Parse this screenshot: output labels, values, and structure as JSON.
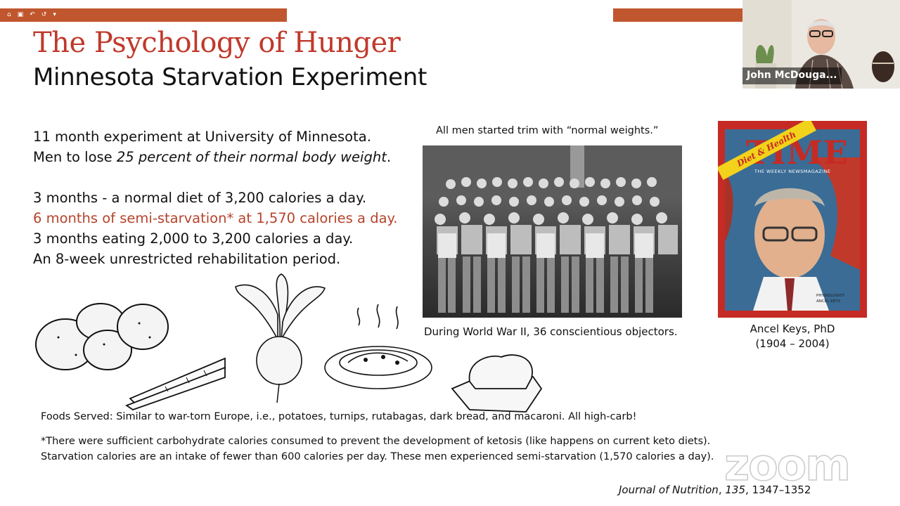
{
  "toolbar": {
    "icons": [
      "home-icon",
      "save-icon",
      "undo-icon",
      "redo-icon",
      "dropdown-icon"
    ],
    "glyphs": [
      "⌂",
      "▣",
      "↶",
      "↺",
      "▾"
    ]
  },
  "slide": {
    "title": "The Psychology of Hunger",
    "subtitle": "Minnesota Starvation Experiment",
    "bullets": {
      "line1": "11 month experiment at University of Minnesota.",
      "line2_prefix": "Men to lose ",
      "line2_italic": "25 percent of their normal body weight",
      "line2_suffix": ".",
      "line3": "3 months - a normal diet of 3,200 calories a day.",
      "line4": "6 months of semi-starvation* at 1,570 calories a day.",
      "line5": "3 months eating 2,000 to 3,200 calories a day.",
      "line6": "An 8-week unrestricted rehabilitation period."
    },
    "photo_caption_top": "All men started trim with “normal weights.”",
    "photo_caption_bottom": "During World War II, 36 conscientious objectors.",
    "time_cover": {
      "masthead": "TIME",
      "banner": "Diet & Health",
      "tagline": "THE WEEKLY NEWSMAGAZINE",
      "small1": "PHYSIOLOGIST",
      "small2": "ANCEL KEYS"
    },
    "person_name": "Ancel Keys, PhD",
    "person_years": "(1904 – 2004)",
    "foods_served": "Foods Served: Similar to war-torn Europe, i.e., potatoes, turnips, rutabagas, dark bread, and macaroni. All high-carb!",
    "footnote1": "*There were sufficient carbohydrate calories consumed to prevent the development of ketosis (like happens on current keto diets).",
    "footnote2": "Starvation calories are an intake of fewer than 600 calories per day. These men experienced semi-starvation (1,570 calories a day).",
    "journal": {
      "name": "Journal of Nutrition",
      "rest1": ", ",
      "volume": "135",
      "rest2": ", 1347–1352"
    }
  },
  "watermark": "zoom",
  "video": {
    "participant_name": "John McDouga..."
  },
  "colors": {
    "accent_bar": "#c0562e",
    "title_red": "#c0392b",
    "time_red": "#c52b24"
  }
}
